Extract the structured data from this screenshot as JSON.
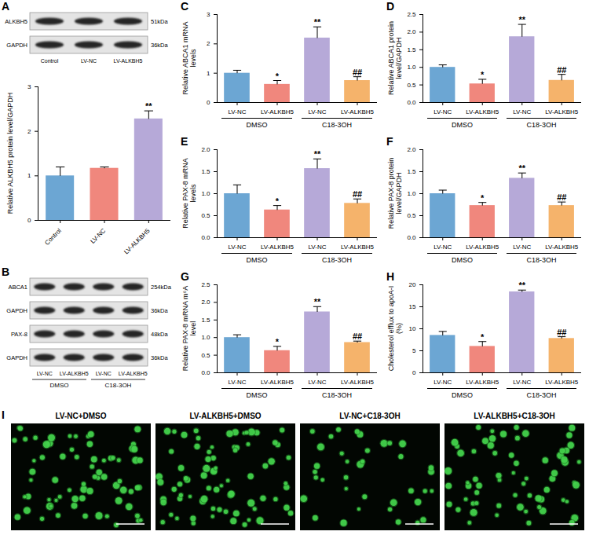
{
  "chart_data": [
    {
      "type": "bar",
      "categories": [
        "Control",
        "LV-NC",
        "LV-ALKBH5"
      ],
      "values": [
        1.0,
        1.17,
        2.28
      ],
      "errors": [
        0.2,
        0.03,
        0.18
      ],
      "annotations": [
        null,
        null,
        "**"
      ],
      "colors": [
        "#6CA6D3",
        "#F0877D",
        "#B6A9D8"
      ],
      "y_label": "Relative ALKBH5 protein level/GAPDH",
      "ylim": [
        0,
        3
      ],
      "yticks": [
        0,
        1,
        2,
        3
      ]
    },
    {
      "panel": "C",
      "type": "bar",
      "categories": [
        "LV-NC",
        "LV-ALKBH5",
        "LV-NC",
        "LV-ALKBH5"
      ],
      "groups": [
        "DMSO",
        "C18-3OH"
      ],
      "values": [
        1.0,
        0.62,
        2.2,
        0.75
      ],
      "errors": [
        0.1,
        0.13,
        0.38,
        0.13
      ],
      "annotations": [
        null,
        "*",
        "**",
        "##"
      ],
      "colors": [
        "#6CA6D3",
        "#F0877D",
        "#B6A9D8",
        "#F5B36B"
      ],
      "y_label": "Relative ABCA1 mRNA levels",
      "ylim": [
        0,
        3
      ],
      "yticks": [
        0,
        1,
        2,
        3
      ]
    },
    {
      "panel": "D",
      "type": "bar",
      "categories": [
        "LV-NC",
        "LV-ALKBH5",
        "LV-NC",
        "LV-ALKBH5"
      ],
      "groups": [
        "DMSO",
        "C18-3OH"
      ],
      "values": [
        1.0,
        0.53,
        1.87,
        0.63
      ],
      "errors": [
        0.07,
        0.13,
        0.35,
        0.17
      ],
      "annotations": [
        null,
        "*",
        "**",
        "##"
      ],
      "colors": [
        "#6CA6D3",
        "#F0877D",
        "#B6A9D8",
        "#F5B36B"
      ],
      "y_label": "Relative ABCA1 protein level/GAPDH",
      "ylim": [
        0,
        2.5
      ],
      "yticks": [
        {
          "value": 0,
          "label": "0.0"
        },
        0.5,
        {
          "value": 1,
          "label": "1.0"
        },
        1.5,
        {
          "value": 2,
          "label": "2.0"
        },
        2.5
      ]
    },
    {
      "panel": "E",
      "type": "bar",
      "categories": [
        "LV-NC",
        "LV-ALKBH5",
        "LV-NC",
        "LV-ALKBH5"
      ],
      "groups": [
        "DMSO",
        "C18-3OH"
      ],
      "values": [
        1.0,
        0.63,
        1.57,
        0.78
      ],
      "errors": [
        0.2,
        0.1,
        0.22,
        0.1
      ],
      "annotations": [
        null,
        "*",
        "**",
        "##"
      ],
      "colors": [
        "#6CA6D3",
        "#F0877D",
        "#B6A9D8",
        "#F5B36B"
      ],
      "y_label": "Relative PAX-8 mRNA levels",
      "ylim": [
        0,
        2
      ],
      "yticks": [
        {
          "value": 0,
          "label": "0.0"
        },
        0.5,
        {
          "value": 1,
          "label": "1.0"
        },
        1.5,
        {
          "value": 2,
          "label": "2.0"
        }
      ]
    },
    {
      "panel": "F",
      "type": "bar",
      "categories": [
        "LV-NC",
        "LV-ALKBH5",
        "LV-NC",
        "LV-ALKBH5"
      ],
      "groups": [
        "DMSO",
        "C18-3OH"
      ],
      "values": [
        1.0,
        0.73,
        1.35,
        0.73
      ],
      "errors": [
        0.08,
        0.07,
        0.12,
        0.08
      ],
      "annotations": [
        null,
        "*",
        "**",
        "##"
      ],
      "colors": [
        "#6CA6D3",
        "#F0877D",
        "#B6A9D8",
        "#F5B36B"
      ],
      "y_label": "Relative PAX-8 protein level/GAPDH",
      "ylim": [
        0,
        2
      ],
      "yticks": [
        {
          "value": 0,
          "label": "0.0"
        },
        0.5,
        {
          "value": 1,
          "label": "1.0"
        },
        1.5,
        {
          "value": 2,
          "label": "2.0"
        }
      ]
    },
    {
      "panel": "G",
      "type": "bar",
      "categories": [
        "LV-NC",
        "LV-ALKBH5",
        "LV-NC",
        "LV-ALKBH5"
      ],
      "groups": [
        "DMSO",
        "C18-3OH"
      ],
      "values": [
        1.0,
        0.63,
        1.73,
        0.86
      ],
      "errors": [
        0.08,
        0.12,
        0.15,
        0.04
      ],
      "annotations": [
        null,
        "*",
        "**",
        "##"
      ],
      "colors": [
        "#6CA6D3",
        "#F0877D",
        "#B6A9D8",
        "#F5B36B"
      ],
      "y_label": "Relative PAX-8 mRNA m⁶A level",
      "ylim": [
        0,
        2.5
      ],
      "yticks": [
        {
          "value": 0,
          "label": "0.0"
        },
        0.5,
        {
          "value": 1,
          "label": "1.0"
        },
        1.5,
        {
          "value": 2,
          "label": "2.0"
        },
        2.5
      ]
    },
    {
      "panel": "H",
      "type": "bar",
      "categories": [
        "LV-NC",
        "LV-ALKBH5",
        "LV-NC",
        "LV-ALKBH5"
      ],
      "groups": [
        "DMSO",
        "C18-3OH"
      ],
      "values": [
        8.5,
        6.0,
        18.4,
        7.8
      ],
      "errors": [
        0.9,
        1.1,
        0.4,
        0.4
      ],
      "annotations": [
        null,
        "*",
        "**",
        "##"
      ],
      "colors": [
        "#6CA6D3",
        "#F0877D",
        "#B6A9D8",
        "#F5B36B"
      ],
      "y_label": "Cholesterol efflux to apoA-I (%)",
      "ylim": [
        0,
        20
      ],
      "yticks": [
        0,
        5,
        10,
        15,
        20
      ]
    }
  ],
  "blots": [
    {
      "panel": "A",
      "rows": [
        {
          "label": "ALKBH5",
          "size": "51kDa"
        },
        {
          "label": "GAPDH",
          "size": "36kDa"
        }
      ],
      "lanes": [
        "Control",
        "LV-NC",
        "LV-ALKBH5"
      ]
    },
    {
      "panel": "B",
      "rows": [
        {
          "label": "ABCA1",
          "size": "254kDa"
        },
        {
          "label": "GAPDH",
          "size": "36kDa"
        },
        {
          "label": "PAX-8",
          "size": "48kDa"
        },
        {
          "label": "GAPDH",
          "size": "36kDa"
        }
      ],
      "lanes": [
        "LV-NC",
        "LV-ALKBH5",
        "LV-NC",
        "LV-ALKBH5"
      ],
      "groups": [
        "DMSO",
        "C18-3OH"
      ]
    }
  ],
  "micrographs": {
    "panel": "I",
    "titles": [
      "LV-NC+DMSO",
      "LV-ALKBH5+DMSO",
      "LV-NC+C18-3OH",
      "LV-ALKBH5+C18-3OH"
    ]
  }
}
